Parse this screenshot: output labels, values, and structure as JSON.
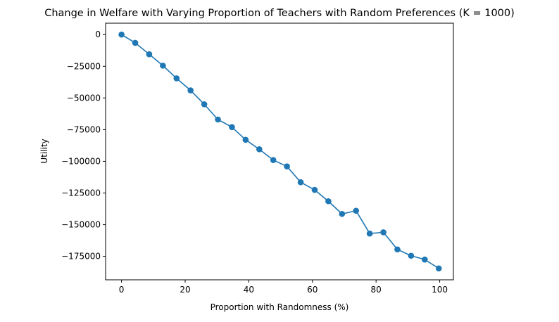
{
  "chart_data": {
    "type": "line",
    "title": "Change in Welfare with Varying Proportion of Teachers with Random Preferences (K = 1000)",
    "xlabel": "Proportion with Randomness (%)",
    "ylabel": "Utility",
    "xlim": [
      -5.0,
      104.3
    ],
    "ylim": [
      -193500,
      9000
    ],
    "xticks": [
      0,
      20,
      40,
      60,
      80,
      100
    ],
    "xtick_labels": [
      "0",
      "20",
      "40",
      "60",
      "80",
      "100"
    ],
    "yticks": [
      0,
      -25000,
      -50000,
      -75000,
      -100000,
      -125000,
      -150000,
      -175000
    ],
    "ytick_labels": [
      "0",
      "−25000",
      "−50000",
      "−75000",
      "−100000",
      "−125000",
      "−150000",
      "−175000"
    ],
    "grid": false,
    "legend": false,
    "marker": "circle",
    "series": [
      {
        "color": "#1f77b4",
        "x": [
          0,
          4.3,
          8.7,
          13.0,
          17.3,
          21.7,
          26.0,
          30.3,
          34.7,
          39.0,
          43.3,
          47.7,
          52.0,
          56.3,
          60.7,
          65.0,
          69.3,
          73.7,
          78.0,
          82.3,
          86.7,
          91.0,
          95.3,
          99.7
        ],
        "values": [
          0,
          -6500,
          -15500,
          -24500,
          -34500,
          -44000,
          -55000,
          -67000,
          -73000,
          -83000,
          -90500,
          -99000,
          -104000,
          -116500,
          -122500,
          -131500,
          -141500,
          -139000,
          -157000,
          -156000,
          -169500,
          -174500,
          -177500,
          -184500
        ]
      }
    ]
  }
}
